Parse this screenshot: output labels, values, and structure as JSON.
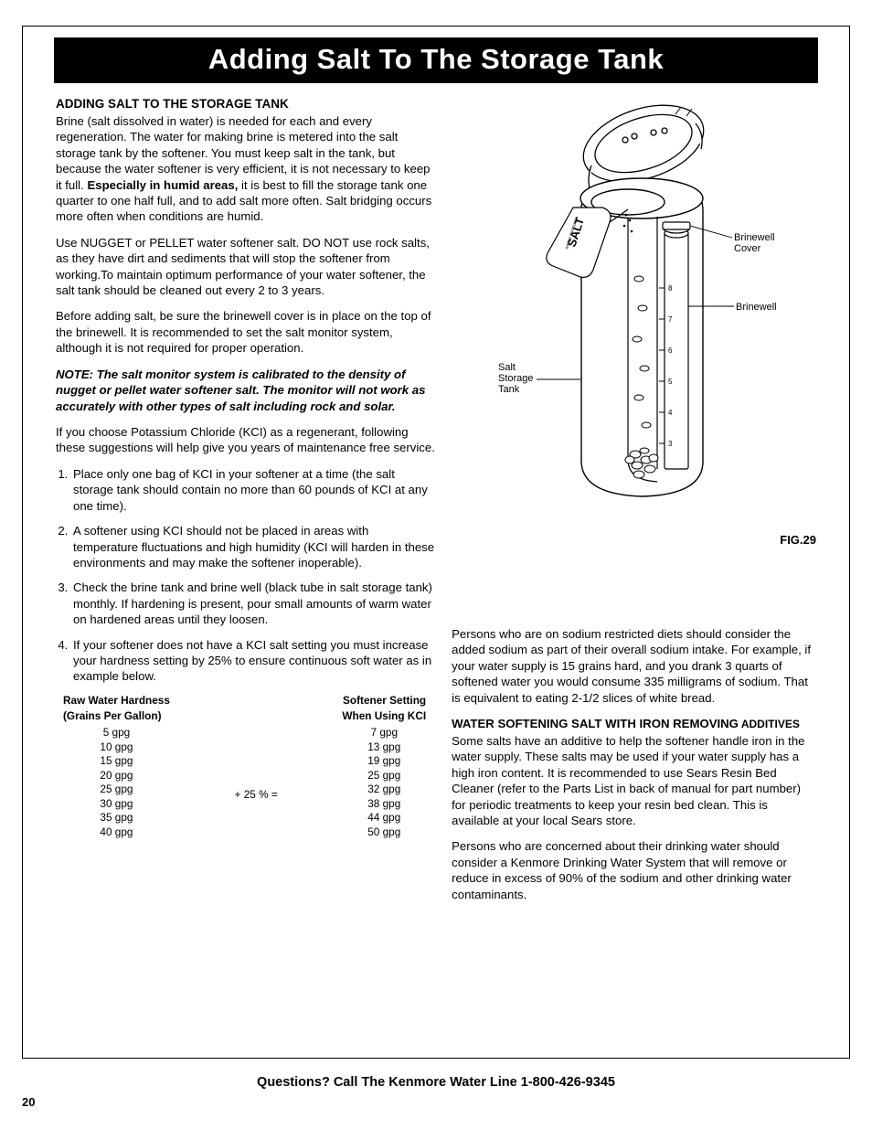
{
  "title_band": "Adding Salt To The Storage Tank",
  "left": {
    "subhead": "ADDING SALT TO THE STORAGE TANK",
    "p1a": "Brine (salt dissolved in water) is needed for each and every regeneration. The water for making brine is metered into the salt storage tank by the softener. You must keep salt in the tank, but because the water softener is very efficient, it is not necessary to keep it full. ",
    "p1b_bold": "Especially in humid areas,",
    "p1c": " it is best to fill the storage tank one quarter to one half full, and to add salt more often. Salt bridging occurs more often when conditions are humid.",
    "p2": "Use NUGGET or PELLET water softener salt. DO NOT use rock salts, as they have dirt and sediments that will stop the softener from working.To maintain optimum performance of your water softener, the salt tank should be cleaned out every 2 to 3 years.",
    "p3": "Before adding salt, be sure the brinewell cover is in place on the top of the brinewell. It is recommended to set the salt monitor system, although it is not required for proper operation.",
    "note": "NOTE: The salt monitor system is calibrated to the density of nugget or pellet water softener salt. The monitor will not work as accurately with other types of salt including rock and solar.",
    "p4": "If you choose Potassium Chloride (KCI) as a regenerant, following these suggestions will help give you years of maintenance free service.",
    "li1": "Place only one bag of KCI in your softener at a time (the salt storage tank should contain no more than 60 pounds of KCI at any one time).",
    "li2": "A softener using KCI should not be placed in areas with temperature fluctuations and high humidity (KCI will harden in these environments and may make the softener inoperable).",
    "li3": "Check the brine tank and brine well (black tube in salt storage tank) monthly. If hardening is present, pour small amounts of warm water on hardened areas until they loosen.",
    "li4": "If your softener does not have a KCI salt setting you must increase your hardness setting by 25% to ensure continuous soft water as in example below.",
    "ht_left_head1": "Raw Water Hardness",
    "ht_left_head2": "(Grains Per Gallon)",
    "ht_left_vals": [
      "5 gpg",
      "10 gpg",
      "15 gpg",
      "20 gpg",
      "25 gpg",
      "30 gpg",
      "35 gpg",
      "40 gpg"
    ],
    "ht_mid": "+ 25 % =",
    "ht_right_head1": "Softener Setting",
    "ht_right_head2": "When Using KCI",
    "ht_right_vals": [
      "7 gpg",
      "13 gpg",
      "19 gpg",
      "25 gpg",
      "32 gpg",
      "38 gpg",
      "44 gpg",
      "50 gpg"
    ]
  },
  "right": {
    "diagram": {
      "label_salt_tank": "Salt\nStorage\nTank",
      "label_brinewell_cover": "Brinewell\nCover",
      "label_brinewell": "Brinewell",
      "salt_bag_text": "SALT",
      "tick_labels": [
        "8",
        "7",
        "6",
        "5",
        "4",
        "3"
      ],
      "fig": "FIG.29",
      "colors": {
        "stroke": "#000000",
        "fill_white": "#ffffff"
      }
    },
    "p1": "Persons who are on sodium restricted diets should consider the added sodium as part of their overall sodium intake. For example, if your water supply is 15 grains hard, and you drank 3 quarts of softened water you would consume 335 milligrams of sodium. That is equivalent to eating 2-1/2 slices of white bread.",
    "subhead2a": "WATER SOFTENING SALT WITH IRON REMOVING",
    "subhead2b": " ADDITIVES",
    "p2": "Some salts have an additive to help the softener handle iron in the water supply. These salts may be used if your water supply has a high iron content. It is recommended to use Sears Resin Bed Cleaner (refer to the Parts List in back of manual for part number) for periodic treatments to keep your resin bed clean. This is available at your local Sears store.",
    "p3": "Persons who are concerned about their drinking water should consider a Kenmore Drinking Water System that will remove or reduce in excess of 90% of the sodium and other drinking water contaminants."
  },
  "footer": "Questions? Call The Kenmore Water Line 1-800-426-9345",
  "page_num": "20"
}
